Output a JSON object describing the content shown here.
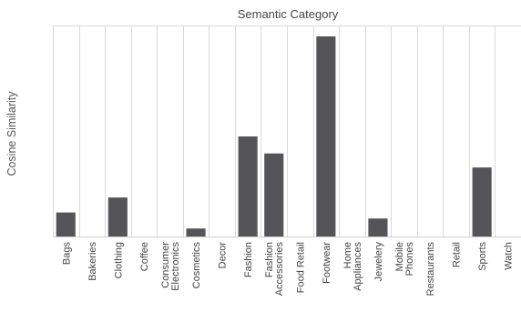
{
  "chart_data": {
    "type": "bar",
    "title": "Semantic Category",
    "xlabel": "",
    "ylabel": "Cosine Similarity",
    "categories": [
      [
        "Bags"
      ],
      [
        "Bakeries"
      ],
      [
        "Clothing"
      ],
      [
        "Coffee"
      ],
      [
        "Consumer",
        "Electronics"
      ],
      [
        "Cosmetics"
      ],
      [
        "Decor"
      ],
      [
        "Fashion"
      ],
      [
        "Fashion",
        "Accessories"
      ],
      [
        "Food Retail"
      ],
      [
        "Footwear"
      ],
      [
        "Home",
        "Appliances"
      ],
      [
        "Jewelery"
      ],
      [
        "Mobile",
        "Phones"
      ],
      [
        "Restaurants"
      ],
      [
        "Retail"
      ],
      [
        "Sports"
      ],
      [
        "Watch"
      ]
    ],
    "values": [
      0.12,
      0,
      0.195,
      0,
      0,
      0.04,
      0,
      0.5,
      0.415,
      0,
      1.0,
      0,
      0.09,
      0,
      0,
      0,
      0.345,
      0
    ],
    "ylim": [
      0,
      1.0
    ],
    "grid": false,
    "bar_color": "#555559"
  }
}
